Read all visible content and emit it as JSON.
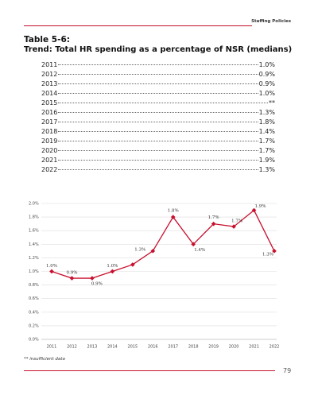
{
  "header": {
    "section": "Staffing Policies"
  },
  "title": {
    "number": "Table 5-6:",
    "text": "Trend: Total HR spending as a percentage of NSR (medians)"
  },
  "table": {
    "rows": [
      [
        "2011",
        "1.0%"
      ],
      [
        "2012",
        "0.9%"
      ],
      [
        "2013",
        "0.9%"
      ],
      [
        "2014",
        "1.0%"
      ],
      [
        "2015",
        "**"
      ],
      [
        "2016",
        "1.3%"
      ],
      [
        "2017",
        "1.8%"
      ],
      [
        "2018",
        "1.4%"
      ],
      [
        "2019",
        "1.7%"
      ],
      [
        "2020",
        "1.7%"
      ],
      [
        "2021",
        "1.9%"
      ],
      [
        "2022",
        "1.3%"
      ]
    ]
  },
  "chart_data": {
    "type": "line",
    "categories": [
      "2011",
      "2012",
      "2013",
      "2014",
      "2015",
      "2016",
      "2017",
      "2018",
      "2019",
      "2020",
      "2021",
      "2022"
    ],
    "values": [
      1.0,
      0.9,
      0.9,
      1.0,
      1.1,
      1.3,
      1.8,
      1.4,
      1.7,
      1.66,
      1.9,
      1.3
    ],
    "value_labels": [
      "1.0%",
      "0.9%",
      "0.9%",
      "1.0%",
      null,
      "1.3%",
      "1.8%",
      "1.4%",
      "1.7%",
      "1.7%",
      "1.9%",
      "1.3%"
    ],
    "color": "#c8102e",
    "ylim": [
      0,
      2.0
    ],
    "yticks": [
      {
        "value": 0,
        "label": "0.0%"
      },
      {
        "value": 0.2,
        "label": "0.2%"
      },
      {
        "value": 0.4,
        "label": "0.4%"
      },
      {
        "value": 0.6,
        "label": "0.6%"
      },
      {
        "value": 0.8,
        "label": "0.8%"
      },
      {
        "value": 1.0,
        "label": "1.0%"
      },
      {
        "value": 1.2,
        "label": "1.2%"
      },
      {
        "value": 1.4,
        "label": "1.4%"
      },
      {
        "value": 1.6,
        "label": "1.6%"
      },
      {
        "value": 1.8,
        "label": "1.8%"
      },
      {
        "value": 2.0,
        "label": "2.0%"
      }
    ],
    "grid": true
  },
  "footnote": "** insufficient data",
  "page_number": "79"
}
